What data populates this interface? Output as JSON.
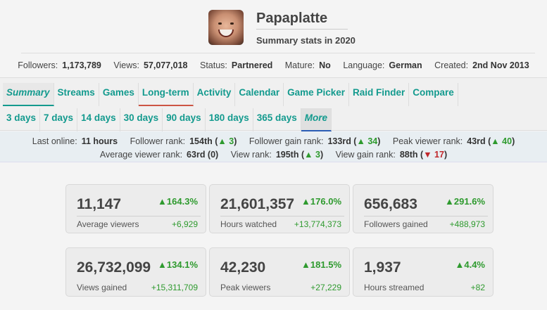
{
  "channel": {
    "name": "Papaplatte",
    "subtitle": "Summary stats in 2020"
  },
  "info": [
    {
      "key": "Followers:",
      "value": "1,173,789"
    },
    {
      "key": "Views:",
      "value": "57,077,018"
    },
    {
      "key": "Status:",
      "value": "Partnered"
    },
    {
      "key": "Mature:",
      "value": "No"
    },
    {
      "key": "Language:",
      "value": "German"
    },
    {
      "key": "Created:",
      "value": "2nd Nov 2013"
    }
  ],
  "nav": {
    "tabs": [
      "Summary",
      "Streams",
      "Games",
      "Long-term",
      "Activity",
      "Calendar",
      "Game Picker",
      "Raid Finder",
      "Compare"
    ],
    "periods": [
      "3 days",
      "7 days",
      "14 days",
      "30 days",
      "90 days",
      "180 days",
      "365 days",
      "More"
    ]
  },
  "ranks": {
    "line1": [
      {
        "key": "Last online:",
        "value": "11 hours"
      },
      {
        "key": "Follower rank:",
        "value": "154th",
        "change": "3",
        "dir": "up"
      },
      {
        "key": "Follower gain rank:",
        "value": "133rd",
        "change": "34",
        "dir": "up"
      },
      {
        "key": "Peak viewer rank:",
        "value": "43rd",
        "change": "40",
        "dir": "up"
      }
    ],
    "line2": [
      {
        "key": "Average viewer rank:",
        "value": "63rd (0)"
      },
      {
        "key": "View rank:",
        "value": "195th",
        "change": "3",
        "dir": "up"
      },
      {
        "key": "View gain rank:",
        "value": "88th",
        "change": "17",
        "dir": "down"
      }
    ]
  },
  "cards": [
    {
      "value": "11,147",
      "label": "Average viewers",
      "pct": "164.3%",
      "delta": "+6,929"
    },
    {
      "value": "21,601,357",
      "label": "Hours watched",
      "pct": "176.0%",
      "delta": "+13,774,373"
    },
    {
      "value": "656,683",
      "label": "Followers gained",
      "pct": "291.6%",
      "delta": "+488,973"
    },
    {
      "value": "26,732,099",
      "label": "Views gained",
      "pct": "134.1%",
      "delta": "+15,311,709"
    },
    {
      "value": "42,230",
      "label": "Peak viewers",
      "pct": "181.5%",
      "delta": "+27,229"
    },
    {
      "value": "1,937",
      "label": "Hours streamed",
      "pct": "4.4%",
      "delta": "+82"
    }
  ],
  "colors": {
    "accent": "#139a8e",
    "up": "#2e9a2e",
    "down": "#c0262a"
  }
}
